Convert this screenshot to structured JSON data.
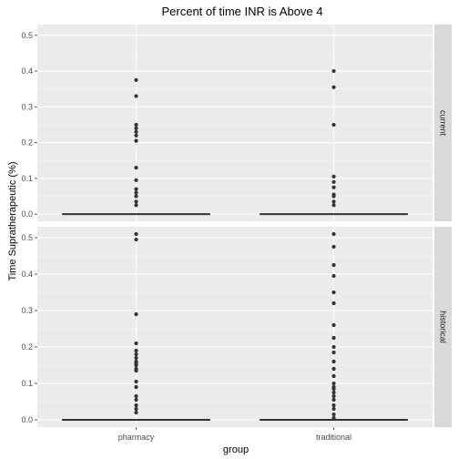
{
  "chart_data": {
    "type": "boxplot-faceted",
    "title": "Percent of time INR is Above 4",
    "xlabel": "group",
    "ylabel": "Time Supratherapeutic (%)",
    "categories": [
      "pharmacy",
      "traditional"
    ],
    "ylim": [
      -0.02,
      0.53
    ],
    "yticks": [
      "0.0",
      "0.1",
      "0.2",
      "0.3",
      "0.4",
      "0.5"
    ],
    "grid": true,
    "colors": {
      "panel": "#ebebeb",
      "grid_major": "#ffffff",
      "strip": "#d9d9d9",
      "points": "#333333",
      "median": "#333333"
    },
    "facets": [
      {
        "label": "current",
        "groups": [
          {
            "category": "pharmacy",
            "median": 0.0,
            "outliers": [
              0.375,
              0.33,
              0.25,
              0.24,
              0.23,
              0.22,
              0.205,
              0.13,
              0.095,
              0.07,
              0.06,
              0.05,
              0.035,
              0.025
            ]
          },
          {
            "category": "traditional",
            "median": 0.0,
            "outliers": [
              0.4,
              0.355,
              0.25,
              0.105,
              0.09,
              0.075,
              0.055,
              0.05,
              0.035,
              0.025
            ]
          }
        ]
      },
      {
        "label": "historical",
        "groups": [
          {
            "category": "pharmacy",
            "median": 0.0,
            "outliers": [
              0.51,
              0.495,
              0.29,
              0.21,
              0.19,
              0.18,
              0.17,
              0.16,
              0.155,
              0.15,
              0.14,
              0.135,
              0.105,
              0.09,
              0.065,
              0.055,
              0.04,
              0.03,
              0.02
            ]
          },
          {
            "category": "traditional",
            "median": 0.0,
            "outliers": [
              0.51,
              0.475,
              0.425,
              0.395,
              0.35,
              0.32,
              0.26,
              0.225,
              0.2,
              0.185,
              0.16,
              0.14,
              0.12,
              0.1,
              0.09,
              0.085,
              0.075,
              0.065,
              0.055,
              0.04,
              0.03,
              0.015,
              0.005
            ]
          }
        ]
      }
    ]
  }
}
